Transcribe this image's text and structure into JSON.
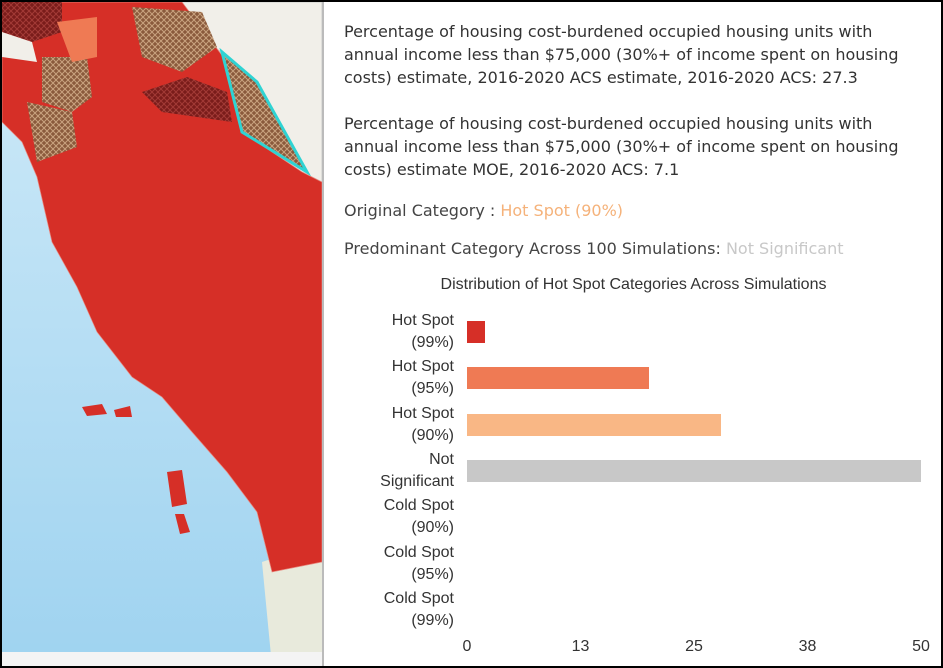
{
  "popup": {
    "fields": [
      "Percentage of housing cost-burdened occupied housing units with annual income less than $75,000 (30%+ of income spent on housing costs) estimate, 2016-2020 ACS estimate, 2016-2020 ACS: 27.3",
      "Percentage of housing cost-burdened occupied housing units with annual income less than $75,000 (30%+ of income spent on housing costs) estimate MOE, 2016-2020 ACS: 7.1"
    ],
    "original_category_label": "Original Category :",
    "original_category_value": "Hot Spot (90%)",
    "predominant_category_label": "Predominant Category Across 100 Simulations:",
    "predominant_category_value": "Not Significant"
  },
  "chart_data": {
    "type": "bar",
    "orientation": "horizontal",
    "title": "Distribution of Hot Spot Categories Across Simulations",
    "categories": [
      "Hot Spot (99%)",
      "Hot Spot (95%)",
      "Hot Spot (90%)",
      "Not Significant",
      "Cold Spot (90%)",
      "Cold Spot (95%)",
      "Cold Spot (99%)"
    ],
    "values": [
      2,
      20,
      28,
      50,
      0,
      0,
      0
    ],
    "colors": [
      "#d62f27",
      "#ef7a54",
      "#f9b785",
      "#c8c8c8",
      "#abd9e9",
      "#74add1",
      "#4575b4"
    ],
    "xlim": [
      0,
      50
    ],
    "xticks": [
      0,
      {
        "value": 12.5,
        "label": "13"
      },
      25,
      {
        "value": 37.5,
        "label": "38"
      },
      50
    ],
    "grid": false
  }
}
